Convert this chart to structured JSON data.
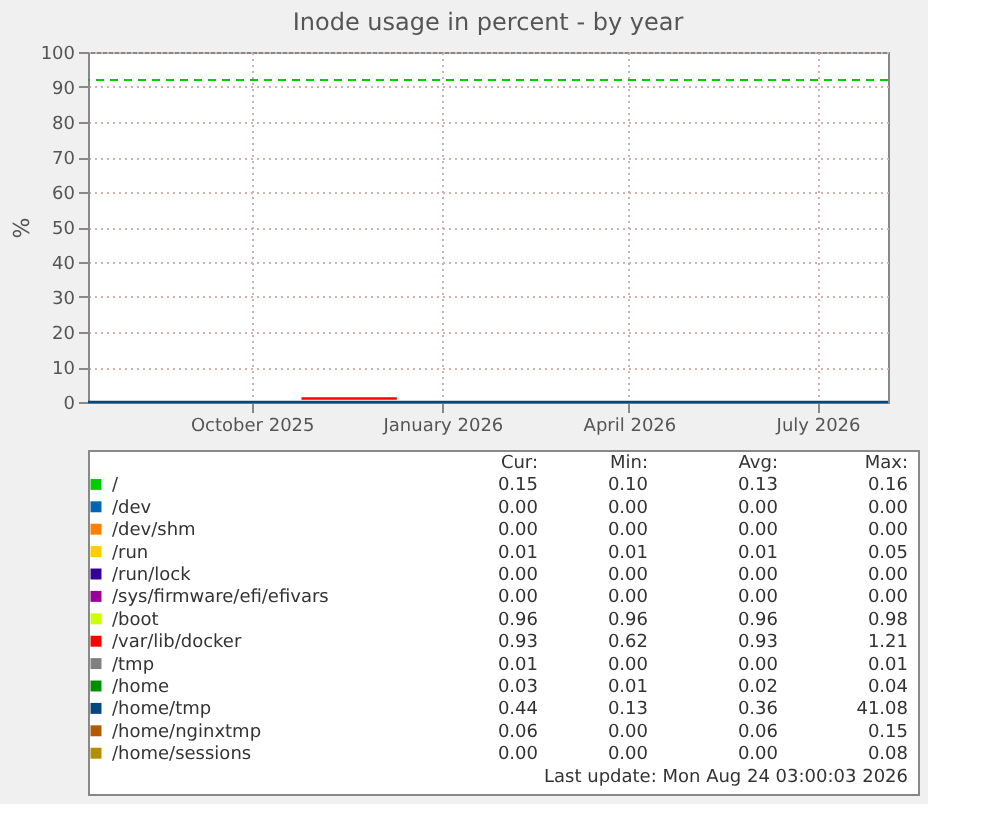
{
  "chart_data": {
    "type": "line",
    "title": "Inode usage in percent - by year",
    "ylabel": "%",
    "x": [
      "2025-07-14",
      "2025-09-01",
      "2025-10-25",
      "2025-12-10",
      "2026-02-01",
      "2026-05-01",
      "2026-08-04"
    ],
    "xlim": [
      "2025-07-14",
      "2026-08-04"
    ],
    "xticks": [
      {
        "value": "2025-10-01",
        "label": "October 2025"
      },
      {
        "value": "2026-01-01",
        "label": "January 2026"
      },
      {
        "value": "2026-04-01",
        "label": "April 2026"
      },
      {
        "value": "2026-07-01",
        "label": "July 2026"
      }
    ],
    "ylim": [
      0,
      100
    ],
    "yticks": [
      0,
      10,
      20,
      30,
      40,
      50,
      60,
      70,
      80,
      90,
      100
    ],
    "grid": true,
    "legend": "bottom",
    "line_style": "solid",
    "marker": "none",
    "ref_lines": [
      {
        "axis": "y",
        "value": 92,
        "color": "#00cc00",
        "line_style": "dashed"
      }
    ],
    "series": [
      {
        "name": "/",
        "color": "#00cc00",
        "values": [
          null,
          null,
          null,
          null,
          null,
          null,
          null
        ]
      },
      {
        "name": "/dev",
        "color": "#0066b3",
        "values": [
          null,
          null,
          null,
          null,
          null,
          null,
          null
        ]
      },
      {
        "name": "/dev/shm",
        "color": "#ff8000",
        "values": [
          null,
          null,
          null,
          null,
          null,
          null,
          null
        ]
      },
      {
        "name": "/run",
        "color": "#ffcc00",
        "values": [
          null,
          null,
          null,
          null,
          null,
          null,
          null
        ]
      },
      {
        "name": "/run/lock",
        "color": "#330099",
        "values": [
          null,
          null,
          null,
          null,
          null,
          null,
          null
        ]
      },
      {
        "name": "/sys/firmware/efi/efivars",
        "color": "#990099",
        "values": [
          null,
          null,
          null,
          null,
          null,
          null,
          null
        ]
      },
      {
        "name": "/boot",
        "color": "#ccff00",
        "values": [
          null,
          null,
          null,
          null,
          null,
          null,
          null
        ]
      },
      {
        "name": "/var/lib/docker",
        "color": "#ff0000",
        "values": [
          null,
          null,
          1,
          1,
          null,
          null,
          null
        ]
      },
      {
        "name": "/tmp",
        "color": "#808080",
        "values": [
          null,
          null,
          null,
          null,
          null,
          null,
          null
        ]
      },
      {
        "name": "/home",
        "color": "#008f00",
        "values": [
          null,
          null,
          null,
          null,
          null,
          null,
          null
        ]
      },
      {
        "name": "/home/tmp",
        "color": "#00487d",
        "values": [
          0,
          0,
          0,
          0,
          0,
          0,
          0
        ]
      },
      {
        "name": "/home/nginxtmp",
        "color": "#b35a00",
        "values": [
          null,
          null,
          null,
          null,
          null,
          null,
          null
        ]
      },
      {
        "name": "/home/sessions",
        "color": "#b38f00",
        "values": [
          null,
          null,
          null,
          null,
          null,
          null,
          null
        ]
      }
    ],
    "annotations": [
      "Cur:",
      "Min:",
      "Avg:",
      "Max:",
      "0.15",
      "0.10",
      "0.13",
      "0.16",
      "0.00",
      "0.00",
      "0.00",
      "0.00",
      "0.00",
      "0.00",
      "0.00",
      "0.00",
      "0.01",
      "0.01",
      "0.01",
      "0.05",
      "0.00",
      "0.00",
      "0.00",
      "0.00",
      "0.00",
      "0.00",
      "0.00",
      "0.00",
      "0.96",
      "0.96",
      "0.96",
      "0.98",
      "0.93",
      "0.62",
      "0.93",
      "1.21",
      "0.01",
      "0.00",
      "0.00",
      "0.01",
      "0.03",
      "0.01",
      "0.02",
      "0.04",
      "0.44",
      "0.13",
      "0.36",
      "41.08",
      "0.06",
      "0.00",
      "0.06",
      "0.15",
      "0.00",
      "0.00",
      "0.00",
      "0.08",
      "Last update: Mon Aug 24 03:00:03 2026"
    ]
  }
}
